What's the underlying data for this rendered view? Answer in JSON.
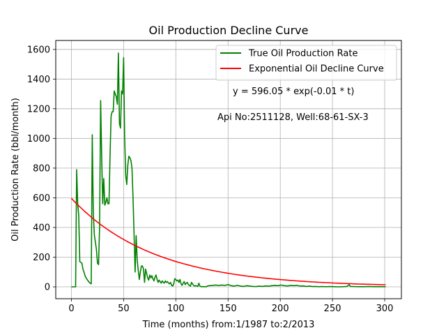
{
  "chart_data": {
    "type": "line",
    "title": "Oil Production Decline Curve",
    "xlabel": "Time (months) from:1/1987 to:2/2013",
    "ylabel": "Oil Production Rate (bbl/month)",
    "xlim": [
      -15,
      316
    ],
    "ylim": [
      -80,
      1660
    ],
    "xticks": [
      0,
      50,
      100,
      150,
      200,
      250,
      300
    ],
    "yticks": [
      0,
      200,
      400,
      600,
      800,
      1000,
      1200,
      1400,
      1600
    ],
    "grid": true,
    "legend_position": "top-right",
    "colors": {
      "true": "#008000",
      "fit": "#ff0000"
    },
    "series": [
      {
        "name": "True Oil Production Rate",
        "color": "#008000",
        "points": [
          [
            0,
            0
          ],
          [
            1,
            0
          ],
          [
            2,
            0
          ],
          [
            3,
            0
          ],
          [
            4,
            0
          ],
          [
            5,
            790
          ],
          [
            6,
            560
          ],
          [
            7,
            480
          ],
          [
            8,
            170
          ],
          [
            9,
            165
          ],
          [
            10,
            160
          ],
          [
            11,
            120
          ],
          [
            12,
            100
          ],
          [
            13,
            75
          ],
          [
            14,
            60
          ],
          [
            15,
            50
          ],
          [
            16,
            40
          ],
          [
            17,
            30
          ],
          [
            18,
            25
          ],
          [
            19,
            20
          ],
          [
            20,
            1025
          ],
          [
            21,
            500
          ],
          [
            22,
            350
          ],
          [
            23,
            300
          ],
          [
            24,
            250
          ],
          [
            25,
            160
          ],
          [
            26,
            150
          ],
          [
            27,
            400
          ],
          [
            28,
            1255
          ],
          [
            29,
            880
          ],
          [
            30,
            560
          ],
          [
            31,
            730
          ],
          [
            32,
            550
          ],
          [
            33,
            570
          ],
          [
            34,
            600
          ],
          [
            35,
            560
          ],
          [
            36,
            560
          ],
          [
            37,
            880
          ],
          [
            38,
            1150
          ],
          [
            39,
            1180
          ],
          [
            40,
            1180
          ],
          [
            41,
            1320
          ],
          [
            42,
            1300
          ],
          [
            43,
            1280
          ],
          [
            44,
            1230
          ],
          [
            45,
            1575
          ],
          [
            46,
            1100
          ],
          [
            47,
            1070
          ],
          [
            48,
            1320
          ],
          [
            49,
            1300
          ],
          [
            50,
            1545
          ],
          [
            51,
            1000
          ],
          [
            52,
            750
          ],
          [
            53,
            690
          ],
          [
            54,
            820
          ],
          [
            55,
            880
          ],
          [
            56,
            870
          ],
          [
            57,
            850
          ],
          [
            58,
            800
          ],
          [
            59,
            600
          ],
          [
            60,
            350
          ],
          [
            61,
            100
          ],
          [
            62,
            345
          ],
          [
            63,
            180
          ],
          [
            64,
            110
          ],
          [
            65,
            50
          ],
          [
            66,
            100
          ],
          [
            67,
            140
          ],
          [
            68,
            140
          ],
          [
            69,
            120
          ],
          [
            70,
            30
          ],
          [
            71,
            120
          ],
          [
            72,
            90
          ],
          [
            73,
            60
          ],
          [
            74,
            45
          ],
          [
            75,
            80
          ],
          [
            76,
            60
          ],
          [
            77,
            75
          ],
          [
            78,
            55
          ],
          [
            79,
            40
          ],
          [
            80,
            65
          ],
          [
            81,
            80
          ],
          [
            82,
            50
          ],
          [
            83,
            30
          ],
          [
            84,
            45
          ],
          [
            85,
            35
          ],
          [
            86,
            25
          ],
          [
            87,
            40
          ],
          [
            88,
            30
          ],
          [
            89,
            25
          ],
          [
            90,
            40
          ],
          [
            91,
            30
          ],
          [
            92,
            35
          ],
          [
            93,
            25
          ],
          [
            94,
            20
          ],
          [
            95,
            30
          ],
          [
            96,
            10
          ],
          [
            97,
            5
          ],
          [
            98,
            20
          ],
          [
            99,
            55
          ],
          [
            100,
            50
          ],
          [
            101,
            40
          ],
          [
            102,
            45
          ],
          [
            103,
            30
          ],
          [
            104,
            50
          ],
          [
            105,
            20
          ],
          [
            106,
            10
          ],
          [
            107,
            25
          ],
          [
            108,
            35
          ],
          [
            109,
            15
          ],
          [
            110,
            25
          ],
          [
            111,
            30
          ],
          [
            112,
            15
          ],
          [
            113,
            10
          ],
          [
            114,
            5
          ],
          [
            115,
            30
          ],
          [
            116,
            20
          ],
          [
            117,
            10
          ],
          [
            118,
            5
          ],
          [
            119,
            8
          ],
          [
            120,
            5
          ],
          [
            121,
            3
          ],
          [
            122,
            25
          ],
          [
            123,
            5
          ],
          [
            124,
            2
          ],
          [
            125,
            0
          ],
          [
            126,
            3
          ],
          [
            127,
            0
          ],
          [
            128,
            2
          ],
          [
            129,
            0
          ],
          [
            130,
            5
          ],
          [
            132,
            8
          ],
          [
            135,
            10
          ],
          [
            138,
            12
          ],
          [
            141,
            10
          ],
          [
            144,
            12
          ],
          [
            147,
            10
          ],
          [
            150,
            15
          ],
          [
            153,
            8
          ],
          [
            156,
            5
          ],
          [
            159,
            10
          ],
          [
            162,
            5
          ],
          [
            165,
            3
          ],
          [
            168,
            8
          ],
          [
            171,
            5
          ],
          [
            174,
            3
          ],
          [
            177,
            2
          ],
          [
            180,
            5
          ],
          [
            183,
            3
          ],
          [
            186,
            6
          ],
          [
            189,
            4
          ],
          [
            192,
            8
          ],
          [
            195,
            10
          ],
          [
            198,
            8
          ],
          [
            201,
            12
          ],
          [
            204,
            8
          ],
          [
            207,
            6
          ],
          [
            210,
            10
          ],
          [
            213,
            8
          ],
          [
            216,
            10
          ],
          [
            219,
            5
          ],
          [
            222,
            6
          ],
          [
            225,
            3
          ],
          [
            228,
            5
          ],
          [
            231,
            2
          ],
          [
            234,
            3
          ],
          [
            237,
            1
          ],
          [
            240,
            2
          ],
          [
            244,
            1
          ],
          [
            248,
            2
          ],
          [
            252,
            1
          ],
          [
            256,
            0
          ],
          [
            260,
            1
          ],
          [
            264,
            3
          ],
          [
            266,
            15
          ],
          [
            267,
            3
          ],
          [
            270,
            2
          ],
          [
            275,
            1
          ],
          [
            280,
            1
          ],
          [
            285,
            2
          ],
          [
            290,
            1
          ],
          [
            295,
            1
          ],
          [
            301,
            1
          ]
        ]
      },
      {
        "name": "Exponential Oil Decline Curve",
        "color": "#ff0000",
        "model": {
          "a": 596.05,
          "b": 0.0125
        },
        "x_range": [
          0,
          301
        ]
      }
    ],
    "annotations": [
      {
        "text": "y = 596.05 * exp(-0.01 * t)"
      },
      {
        "text": "Api No:2511128, Well:68-61-SX-3"
      }
    ]
  }
}
